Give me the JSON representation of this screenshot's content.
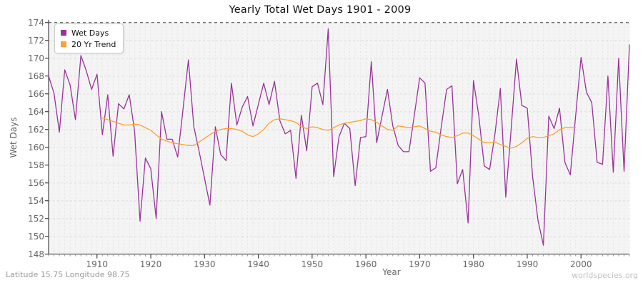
{
  "title": "Yearly Total Wet Days 1901 - 2009",
  "footer": {
    "left": "Latitude 15.75 Longitude 98.75",
    "right": "worldspecies.org"
  },
  "legend": [
    {
      "label": "Wet Days",
      "color": "#993399"
    },
    {
      "label": "20 Yr Trend",
      "color": "#ffa030"
    }
  ],
  "colors": {
    "wet_days_line": "#993399",
    "trend_line": "#ffa030",
    "plot_background": "#f4f4f4",
    "grid_minor": "#e3e3e3",
    "grid_major": "#dedede",
    "top_gridline": "#444444",
    "axis": "#444444",
    "tick_text": "#666666"
  },
  "chart_data": {
    "type": "line",
    "title": "Yearly Total Wet Days 1901 - 2009",
    "xlabel": "Year",
    "ylabel": "Wet Days",
    "x_range": [
      1901,
      2009
    ],
    "ylim": [
      148,
      174
    ],
    "x_ticks": [
      1910,
      1920,
      1930,
      1940,
      1950,
      1960,
      1970,
      1980,
      1990,
      2000
    ],
    "y_ticks": [
      148,
      150,
      152,
      154,
      156,
      158,
      160,
      162,
      164,
      166,
      168,
      170,
      172,
      174
    ],
    "grid": true,
    "legend_position": "top-left",
    "series": [
      {
        "name": "Wet Days",
        "color": "#993399",
        "start_year": 1901,
        "values": [
          168.0,
          166.1,
          161.7,
          168.7,
          167.0,
          163.1,
          170.3,
          168.6,
          166.5,
          168.2,
          161.4,
          165.9,
          159.0,
          164.9,
          164.3,
          165.9,
          161.8,
          151.7,
          158.8,
          157.6,
          152.0,
          164.0,
          160.9,
          160.9,
          158.9,
          164.3,
          169.8,
          162.3,
          159.5,
          156.5,
          153.5,
          162.3,
          159.2,
          158.5,
          167.2,
          162.5,
          164.5,
          165.7,
          162.4,
          164.8,
          167.2,
          164.8,
          167.4,
          163.0,
          161.5,
          161.9,
          156.5,
          163.6,
          159.6,
          166.8,
          167.2,
          164.8,
          173.3,
          156.7,
          161.2,
          162.7,
          162.1,
          155.7,
          161.1,
          161.2,
          169.6,
          160.5,
          163.5,
          166.5,
          162.4,
          160.2,
          159.5,
          159.5,
          163.6,
          167.8,
          167.2,
          157.3,
          157.7,
          162.2,
          166.5,
          166.9,
          155.9,
          157.5,
          151.5,
          167.5,
          163.5,
          157.9,
          157.5,
          161.5,
          166.6,
          154.4,
          162.0,
          169.9,
          164.7,
          164.4,
          156.7,
          151.8,
          149.0,
          163.5,
          162.1,
          164.4,
          158.3,
          156.9,
          163.5,
          170.1,
          166.2,
          165.0,
          158.3,
          158.1,
          168.0,
          157.2,
          170.0,
          157.3,
          171.5
        ]
      },
      {
        "name": "20 Yr Trend",
        "color": "#ffa030",
        "start_year": 1911,
        "values": [
          163.3,
          163.1,
          162.9,
          162.7,
          162.5,
          162.5,
          162.6,
          162.5,
          162.2,
          161.9,
          161.4,
          160.9,
          160.7,
          160.5,
          160.4,
          160.3,
          160.2,
          160.2,
          160.6,
          161.0,
          161.4,
          161.8,
          162.0,
          162.1,
          162.1,
          162.0,
          161.8,
          161.4,
          161.2,
          161.5,
          162.0,
          162.7,
          163.1,
          163.2,
          163.1,
          163.0,
          162.8,
          162.3,
          162.1,
          162.3,
          162.2,
          162.0,
          161.9,
          162.2,
          162.5,
          162.7,
          162.8,
          162.9,
          163.0,
          163.2,
          163.1,
          162.8,
          162.4,
          162.0,
          161.9,
          162.4,
          162.3,
          162.2,
          162.3,
          162.4,
          162.1,
          161.8,
          161.7,
          161.4,
          161.2,
          161.1,
          161.3,
          161.6,
          161.6,
          161.3,
          160.9,
          160.5,
          160.5,
          160.6,
          160.3,
          160.1,
          159.9,
          160.1,
          160.5,
          161.0,
          161.2,
          161.1,
          161.1,
          161.3,
          161.5,
          162.0,
          162.2,
          162.2,
          162.2
        ]
      }
    ]
  }
}
